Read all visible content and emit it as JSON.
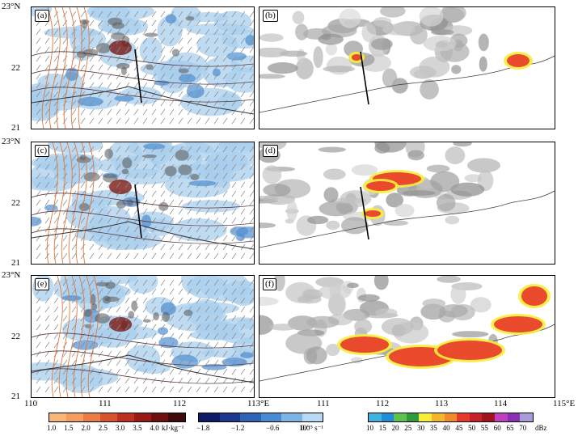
{
  "lat_labels": [
    "23°N",
    "22",
    "21"
  ],
  "lon_labels_left": [
    "110",
    "111",
    "112",
    "113°E"
  ],
  "lon_labels_right": [
    "111",
    "112",
    "113",
    "114",
    "115°E"
  ],
  "panels": [
    {
      "label": "(a)",
      "type": "model"
    },
    {
      "label": "(b)",
      "type": "radar"
    },
    {
      "label": "(c)",
      "type": "model"
    },
    {
      "label": "(d)",
      "type": "radar"
    },
    {
      "label": "(e)",
      "type": "model"
    },
    {
      "label": "(f)",
      "type": "radar"
    }
  ],
  "colorbars": {
    "energy": {
      "labels": [
        "1.0",
        "1.5",
        "2.0",
        "2.5",
        "3.0",
        "3.5",
        "4.0"
      ],
      "unit": "kJ·kg⁻¹",
      "colors": [
        "#f9b777",
        "#f49d5f",
        "#ea7c44",
        "#d9532e",
        "#bf2f1f",
        "#9b1b14",
        "#6e1010",
        "#3f0a09"
      ]
    },
    "vorticity": {
      "labels": [
        "−1.8",
        "−1.2",
        "−0.6",
        "0.0"
      ],
      "unit": "10⁻⁵ s⁻¹",
      "colors": [
        "#0d1a66",
        "#1b3a8f",
        "#2e63b8",
        "#4a8ad2",
        "#7eb3e6",
        "#b7d9f5"
      ]
    },
    "radar": {
      "labels": [
        "10",
        "15",
        "20",
        "25",
        "30",
        "35",
        "40",
        "45",
        "50",
        "55",
        "60",
        "65",
        "70"
      ],
      "unit": "dBz",
      "colors": [
        "#41b2e0",
        "#1e8ed8",
        "#60c24e",
        "#2f9a3b",
        "#f7ee3a",
        "#f4b72b",
        "#f08a2b",
        "#e8382a",
        "#c8202a",
        "#a2121e",
        "#bf40bf",
        "#8a2fb5",
        "#a89bd8"
      ]
    }
  }
}
